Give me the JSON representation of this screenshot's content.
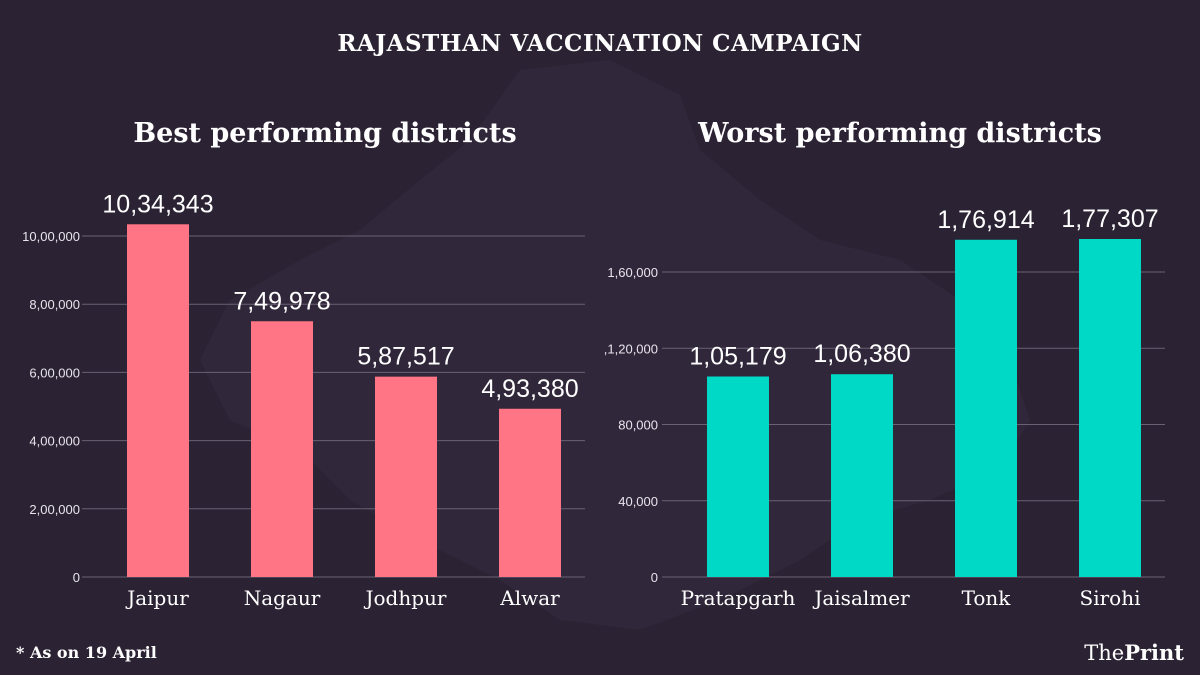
{
  "title": "RAJASTHAN VACCINATION CAMPAIGN",
  "footnote": "* As on 19 April",
  "logo": {
    "the": "The",
    "print": "Print"
  },
  "colors": {
    "background": "#2b2233",
    "best_bar": "#ff7585",
    "worst_bar": "#00d9c6",
    "grid": "#6b6175"
  },
  "chart_data": [
    {
      "type": "bar",
      "title": "Best performing districts",
      "categories": [
        "Jaipur",
        "Nagaur",
        "Jodhpur",
        "Alwar"
      ],
      "values": [
        1034343,
        749978,
        587517,
        493380
      ],
      "value_labels": [
        "10,34,343",
        "7,49,978",
        "5,87,517",
        "4,93,380"
      ],
      "yticks": [
        0,
        200000,
        400000,
        600000,
        800000,
        1000000
      ],
      "ytick_labels": [
        "0",
        "2,00,000",
        "4,00,000",
        "6,00,000",
        "8,00,000",
        "10,00,000"
      ],
      "ylim": [
        0,
        1000000
      ],
      "grid": true,
      "color": "#ff7585"
    },
    {
      "type": "bar",
      "title": "Worst performing districts",
      "categories": [
        "Pratapgarh",
        "Jaisalmer",
        "Tonk",
        "Sirohi"
      ],
      "values": [
        105179,
        106380,
        176914,
        177307
      ],
      "value_labels": [
        "1,05,179",
        "1,06,380",
        "1,76,914",
        "1,77,307"
      ],
      "yticks": [
        0,
        40000,
        80000,
        120000,
        160000
      ],
      "ytick_labels": [
        "0",
        "40,000",
        "80,000",
        ",1,20,000",
        "1,60,000"
      ],
      "ylim": [
        0,
        160000
      ],
      "grid": true,
      "color": "#00d9c6"
    }
  ]
}
